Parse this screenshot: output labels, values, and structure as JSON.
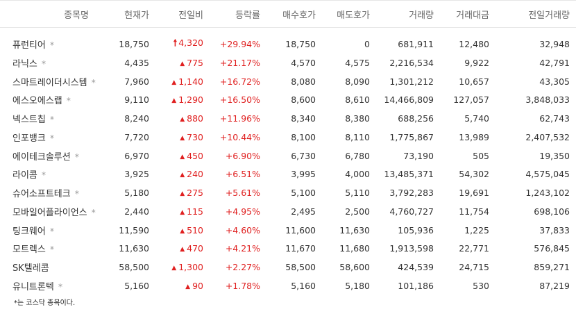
{
  "headers": [
    "종목명",
    "현재가",
    "전일비",
    "등락률",
    "매수호가",
    "매도호가",
    "거래량",
    "거래대금",
    "전일거래량"
  ],
  "colors": {
    "up": "#e02020",
    "text": "#333333",
    "header": "#666666"
  },
  "rows": [
    {
      "name": "퓨런티어",
      "kosdaq": true,
      "price": "18,750",
      "change_icon": "upper-limit-arrow-icon",
      "change": "4,320",
      "rate": "+29.94%",
      "bid": "18,750",
      "ask": "0",
      "volume": "681,911",
      "amount": "12,480",
      "prev_volume": "32,948"
    },
    {
      "name": "라닉스",
      "kosdaq": true,
      "price": "4,435",
      "change_icon": "up-triangle-icon",
      "change": "775",
      "rate": "+21.17%",
      "bid": "4,570",
      "ask": "4,575",
      "volume": "2,216,534",
      "amount": "9,922",
      "prev_volume": "42,791"
    },
    {
      "name": "스마트레이더시스템",
      "kosdaq": true,
      "price": "7,960",
      "change_icon": "up-triangle-icon",
      "change": "1,140",
      "rate": "+16.72%",
      "bid": "8,080",
      "ask": "8,090",
      "volume": "1,301,212",
      "amount": "10,657",
      "prev_volume": "43,305"
    },
    {
      "name": "에스오에스랩",
      "kosdaq": true,
      "price": "9,110",
      "change_icon": "up-triangle-icon",
      "change": "1,290",
      "rate": "+16.50%",
      "bid": "8,600",
      "ask": "8,610",
      "volume": "14,466,809",
      "amount": "127,057",
      "prev_volume": "3,848,033"
    },
    {
      "name": "넥스트칩",
      "kosdaq": true,
      "price": "8,240",
      "change_icon": "up-triangle-icon",
      "change": "880",
      "rate": "+11.96%",
      "bid": "8,340",
      "ask": "8,380",
      "volume": "688,256",
      "amount": "5,740",
      "prev_volume": "62,743"
    },
    {
      "name": "인포뱅크",
      "kosdaq": true,
      "price": "7,720",
      "change_icon": "up-triangle-icon",
      "change": "730",
      "rate": "+10.44%",
      "bid": "8,100",
      "ask": "8,110",
      "volume": "1,775,867",
      "amount": "13,989",
      "prev_volume": "2,407,532"
    },
    {
      "name": "에이테크솔루션",
      "kosdaq": true,
      "price": "6,970",
      "change_icon": "up-triangle-icon",
      "change": "450",
      "rate": "+6.90%",
      "bid": "6,730",
      "ask": "6,780",
      "volume": "73,190",
      "amount": "505",
      "prev_volume": "19,350"
    },
    {
      "name": "라이콤",
      "kosdaq": true,
      "price": "3,925",
      "change_icon": "up-triangle-icon",
      "change": "240",
      "rate": "+6.51%",
      "bid": "3,995",
      "ask": "4,000",
      "volume": "13,485,371",
      "amount": "54,302",
      "prev_volume": "4,575,045"
    },
    {
      "name": "슈어소프트테크",
      "kosdaq": true,
      "price": "5,180",
      "change_icon": "up-triangle-icon",
      "change": "275",
      "rate": "+5.61%",
      "bid": "5,100",
      "ask": "5,110",
      "volume": "3,792,283",
      "amount": "19,691",
      "prev_volume": "1,243,102"
    },
    {
      "name": "모바일어플라이언스",
      "kosdaq": true,
      "price": "2,440",
      "change_icon": "up-triangle-icon",
      "change": "115",
      "rate": "+4.95%",
      "bid": "2,495",
      "ask": "2,500",
      "volume": "4,760,727",
      "amount": "11,754",
      "prev_volume": "698,106"
    },
    {
      "name": "팅크웨어",
      "kosdaq": true,
      "price": "11,590",
      "change_icon": "up-triangle-icon",
      "change": "510",
      "rate": "+4.60%",
      "bid": "11,600",
      "ask": "11,630",
      "volume": "105,936",
      "amount": "1,225",
      "prev_volume": "37,833"
    },
    {
      "name": "모트렉스",
      "kosdaq": true,
      "price": "11,630",
      "change_icon": "up-triangle-icon",
      "change": "470",
      "rate": "+4.21%",
      "bid": "11,670",
      "ask": "11,680",
      "volume": "1,913,598",
      "amount": "22,771",
      "prev_volume": "576,845"
    },
    {
      "name": "SK텔레콤",
      "kosdaq": false,
      "price": "58,500",
      "change_icon": "up-triangle-icon",
      "change": "1,300",
      "rate": "+2.27%",
      "bid": "58,500",
      "ask": "58,600",
      "volume": "424,539",
      "amount": "24,715",
      "prev_volume": "859,271"
    },
    {
      "name": "유니트론텍",
      "kosdaq": true,
      "price": "5,160",
      "change_icon": "up-triangle-icon",
      "change": "90",
      "rate": "+1.78%",
      "bid": "5,160",
      "ask": "5,180",
      "volume": "101,186",
      "amount": "530",
      "prev_volume": "87,219"
    }
  ],
  "kosdaq_mark": "*",
  "up_triangle_glyph": "▲",
  "upper_limit_glyph": "🠕",
  "footnote": "*는 코스닥 종목이다."
}
